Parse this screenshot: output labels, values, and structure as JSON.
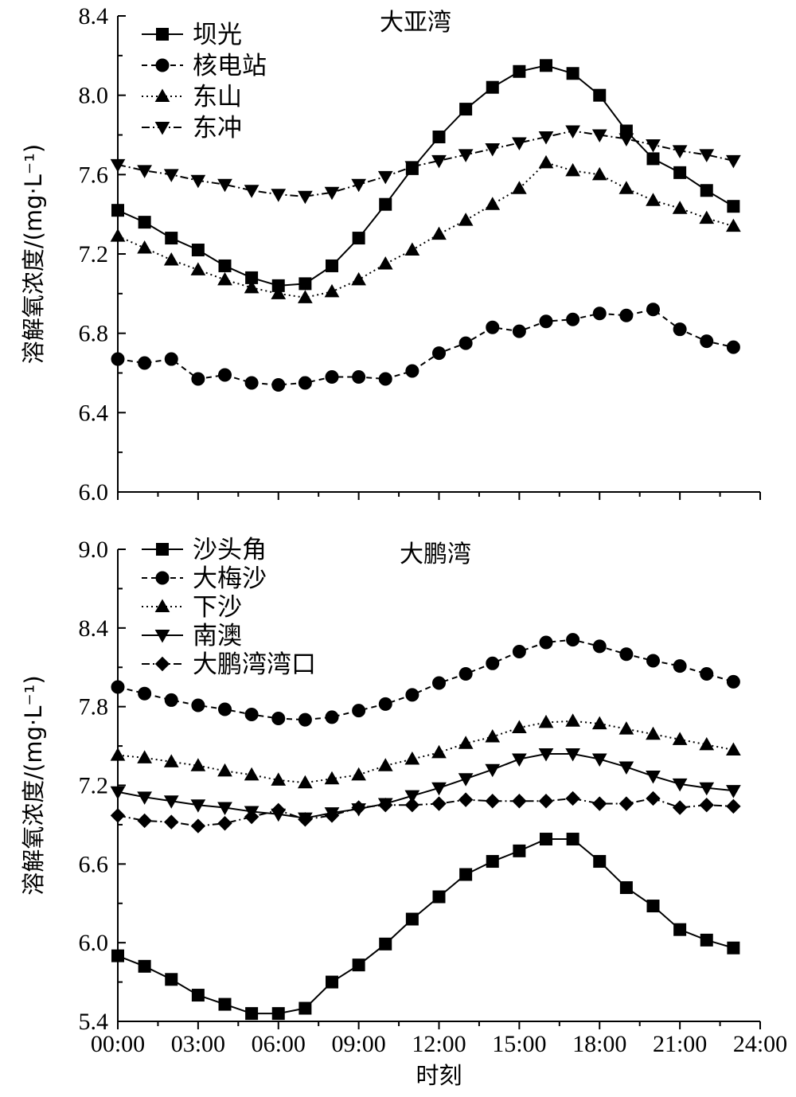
{
  "chart_data": [
    {
      "type": "line",
      "title": "大亚湾",
      "ylabel": "溶解氧浓度/(mg·L⁻¹)",
      "xlabel": "",
      "ylim": [
        6.0,
        8.4
      ],
      "yticks": [
        "6.0",
        "6.4",
        "6.8",
        "7.2",
        "7.6",
        "8.0",
        "8.4"
      ],
      "x": [
        0,
        1,
        2,
        3,
        4,
        5,
        6,
        7,
        8,
        9,
        10,
        11,
        12,
        13,
        14,
        15,
        16,
        17,
        18,
        19,
        20,
        21,
        22,
        23
      ],
      "legend_position": "top-left",
      "series": [
        {
          "name": "坝光",
          "marker": "square",
          "dash": "solid",
          "values": [
            7.42,
            7.36,
            7.28,
            7.22,
            7.14,
            7.08,
            7.04,
            7.05,
            7.14,
            7.28,
            7.45,
            7.63,
            7.79,
            7.93,
            8.04,
            8.12,
            8.15,
            8.11,
            8.0,
            7.82,
            7.68,
            7.61,
            7.52,
            7.44
          ]
        },
        {
          "name": "核电站",
          "marker": "circle",
          "dash": "dash",
          "values": [
            6.67,
            6.65,
            6.67,
            6.57,
            6.59,
            6.55,
            6.54,
            6.55,
            6.58,
            6.58,
            6.57,
            6.61,
            6.7,
            6.75,
            6.83,
            6.81,
            6.86,
            6.87,
            6.9,
            6.89,
            6.92,
            6.82,
            6.76,
            6.73
          ]
        },
        {
          "name": "东山",
          "marker": "triangle-up",
          "dash": "dot",
          "values": [
            7.29,
            7.23,
            7.17,
            7.12,
            7.07,
            7.03,
            7.0,
            6.98,
            7.01,
            7.07,
            7.15,
            7.22,
            7.3,
            7.37,
            7.45,
            7.53,
            7.66,
            7.62,
            7.6,
            7.53,
            7.47,
            7.43,
            7.38,
            7.34
          ]
        },
        {
          "name": "东冲",
          "marker": "triangle-down",
          "dash": "dashdot",
          "values": [
            7.65,
            7.62,
            7.6,
            7.57,
            7.55,
            7.52,
            7.5,
            7.49,
            7.51,
            7.55,
            7.59,
            7.64,
            7.67,
            7.7,
            7.73,
            7.76,
            7.79,
            7.82,
            7.8,
            7.78,
            7.75,
            7.72,
            7.7,
            7.67
          ]
        }
      ]
    },
    {
      "type": "line",
      "title": "大鹏湾",
      "ylabel": "溶解氧浓度/(mg·L⁻¹)",
      "xlabel": "时刻",
      "ylim": [
        5.4,
        9.0
      ],
      "yticks": [
        "5.4",
        "6.0",
        "6.6",
        "7.2",
        "7.8",
        "8.4",
        "9.0"
      ],
      "xticks": [
        "00:00",
        "03:00",
        "06:00",
        "09:00",
        "12:00",
        "15:00",
        "18:00",
        "21:00",
        "24:00"
      ],
      "x": [
        0,
        1,
        2,
        3,
        4,
        5,
        6,
        7,
        8,
        9,
        10,
        11,
        12,
        13,
        14,
        15,
        16,
        17,
        18,
        19,
        20,
        21,
        22,
        23
      ],
      "legend_position": "top-left",
      "series": [
        {
          "name": "沙头角",
          "marker": "square",
          "dash": "solid",
          "values": [
            5.9,
            5.82,
            5.72,
            5.6,
            5.53,
            5.46,
            5.46,
            5.5,
            5.7,
            5.83,
            5.99,
            6.18,
            6.35,
            6.52,
            6.62,
            6.7,
            6.79,
            6.79,
            6.62,
            6.42,
            6.28,
            6.1,
            6.02,
            5.96
          ]
        },
        {
          "name": "大梅沙",
          "marker": "circle",
          "dash": "dash",
          "values": [
            7.95,
            7.9,
            7.85,
            7.81,
            7.78,
            7.74,
            7.71,
            7.7,
            7.72,
            7.77,
            7.82,
            7.89,
            7.98,
            8.05,
            8.13,
            8.22,
            8.29,
            8.31,
            8.26,
            8.2,
            8.15,
            8.11,
            8.05,
            7.99
          ]
        },
        {
          "name": "下沙",
          "marker": "triangle-up",
          "dash": "dot",
          "values": [
            7.43,
            7.41,
            7.38,
            7.35,
            7.31,
            7.28,
            7.24,
            7.22,
            7.25,
            7.28,
            7.35,
            7.4,
            7.45,
            7.52,
            7.57,
            7.64,
            7.68,
            7.69,
            7.67,
            7.63,
            7.59,
            7.55,
            7.51,
            7.47
          ]
        },
        {
          "name": "南澳",
          "marker": "triangle-down",
          "dash": "solid-thin",
          "values": [
            7.15,
            7.11,
            7.08,
            7.05,
            7.03,
            7.0,
            6.98,
            6.95,
            6.99,
            7.02,
            7.06,
            7.12,
            7.18,
            7.25,
            7.32,
            7.4,
            7.44,
            7.44,
            7.4,
            7.34,
            7.27,
            7.21,
            7.18,
            7.16
          ]
        },
        {
          "name": "大鹏湾湾口",
          "marker": "diamond",
          "dash": "dashdot",
          "values": [
            6.97,
            6.93,
            6.92,
            6.89,
            6.91,
            6.96,
            7.01,
            6.94,
            6.97,
            7.03,
            7.05,
            7.05,
            7.06,
            7.09,
            7.08,
            7.08,
            7.08,
            7.1,
            7.06,
            7.06,
            7.1,
            7.03,
            7.05,
            7.04
          ]
        }
      ]
    }
  ]
}
